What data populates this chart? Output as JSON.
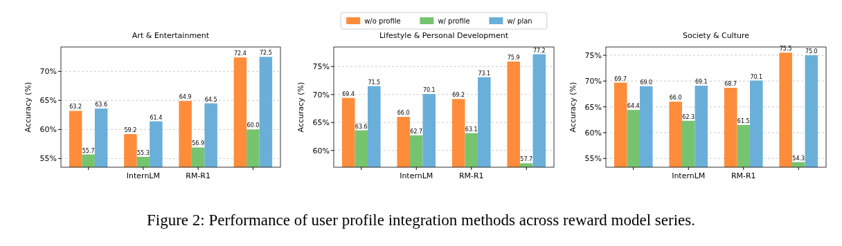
{
  "chart_data": [
    {
      "type": "bar",
      "title": "Art & Entertainment",
      "ylabel": "Accuracy (%)",
      "categories": [
        null,
        "InternLM",
        "RM-R1",
        null
      ],
      "series": [
        {
          "color": "#ff8c3a",
          "values": [
            63.2,
            59.2,
            64.9,
            72.4
          ],
          "value_labels": [
            "63.2",
            "59.2",
            "64.9",
            "72.4"
          ]
        },
        {
          "color": "#76c46f",
          "values": [
            55.7,
            55.3,
            56.9,
            60.0
          ],
          "value_labels": [
            "55.7",
            "55.3",
            "56.9",
            "60.0"
          ]
        },
        {
          "color": "#6aafd9",
          "values": [
            63.6,
            61.4,
            64.5,
            72.5
          ],
          "value_labels": [
            "63.6",
            "61.4",
            "64.5",
            "72.5"
          ]
        }
      ],
      "ylim": [
        53.5,
        74.2
      ],
      "yticks": [
        {
          "value": 55,
          "label": "55%"
        },
        {
          "value": 60,
          "label": "60%"
        },
        {
          "value": 65,
          "label": "65%"
        },
        {
          "value": 70,
          "label": "70%"
        }
      ],
      "grid": "y",
      "legend": false,
      "annotations": [
        "Figure 2: Performance of user profile integration methods across reward model series."
      ]
    },
    {
      "type": "bar",
      "title": "Lifestyle & Personal Development",
      "ylabel": "Accuracy (%)",
      "categories": [
        null,
        "InternLM",
        "RM-R1",
        null
      ],
      "series": [
        {
          "name": "w/o profile",
          "color": "#ff8c3a",
          "values": [
            69.4,
            66.0,
            69.2,
            75.9
          ],
          "value_labels": [
            "69.4",
            "66.0",
            "69.2",
            "75.9"
          ]
        },
        {
          "name": "w/ profile",
          "color": "#76c46f",
          "values": [
            63.6,
            62.7,
            63.1,
            57.7
          ],
          "value_labels": [
            "63.6",
            "62.7",
            "63.1",
            "57.7"
          ]
        },
        {
          "name": "w/ plan",
          "color": "#6aafd9",
          "values": [
            71.5,
            70.1,
            73.1,
            77.2
          ],
          "value_labels": [
            "71.5",
            "70.1",
            "73.1",
            "77.2"
          ]
        }
      ],
      "ylim": [
        57.0,
        78.5
      ],
      "yticks": [
        {
          "value": 60,
          "label": "60%"
        },
        {
          "value": 65,
          "label": "65%"
        },
        {
          "value": 70,
          "label": "70%"
        },
        {
          "value": 75,
          "label": "75%"
        }
      ],
      "grid": "y",
      "legend": "top"
    },
    {
      "type": "bar",
      "title": "Society & Culture",
      "ylabel": "Accuracy (%)",
      "categories": [
        null,
        "InternLM",
        "RM-R1",
        null
      ],
      "series": [
        {
          "color": "#ff8c3a",
          "values": [
            69.7,
            66.0,
            68.7,
            75.5
          ],
          "value_labels": [
            "69.7",
            "66.0",
            "68.7",
            "75.5"
          ]
        },
        {
          "color": "#76c46f",
          "values": [
            64.4,
            62.3,
            61.5,
            54.3
          ],
          "value_labels": [
            "64.4",
            "62.3",
            "61.5",
            "54.3"
          ]
        },
        {
          "color": "#6aafd9",
          "values": [
            69.0,
            69.1,
            70.1,
            75.0
          ],
          "value_labels": [
            "69.0",
            "69.1",
            "70.1",
            "75.0"
          ]
        }
      ],
      "ylim": [
        53.3,
        76.6
      ],
      "yticks": [
        {
          "value": 55,
          "label": "55%"
        },
        {
          "value": 60,
          "label": "60%"
        },
        {
          "value": 65,
          "label": "65%"
        },
        {
          "value": 70,
          "label": "70%"
        },
        {
          "value": 75,
          "label": "75%"
        }
      ],
      "grid": "y",
      "legend": false
    }
  ]
}
